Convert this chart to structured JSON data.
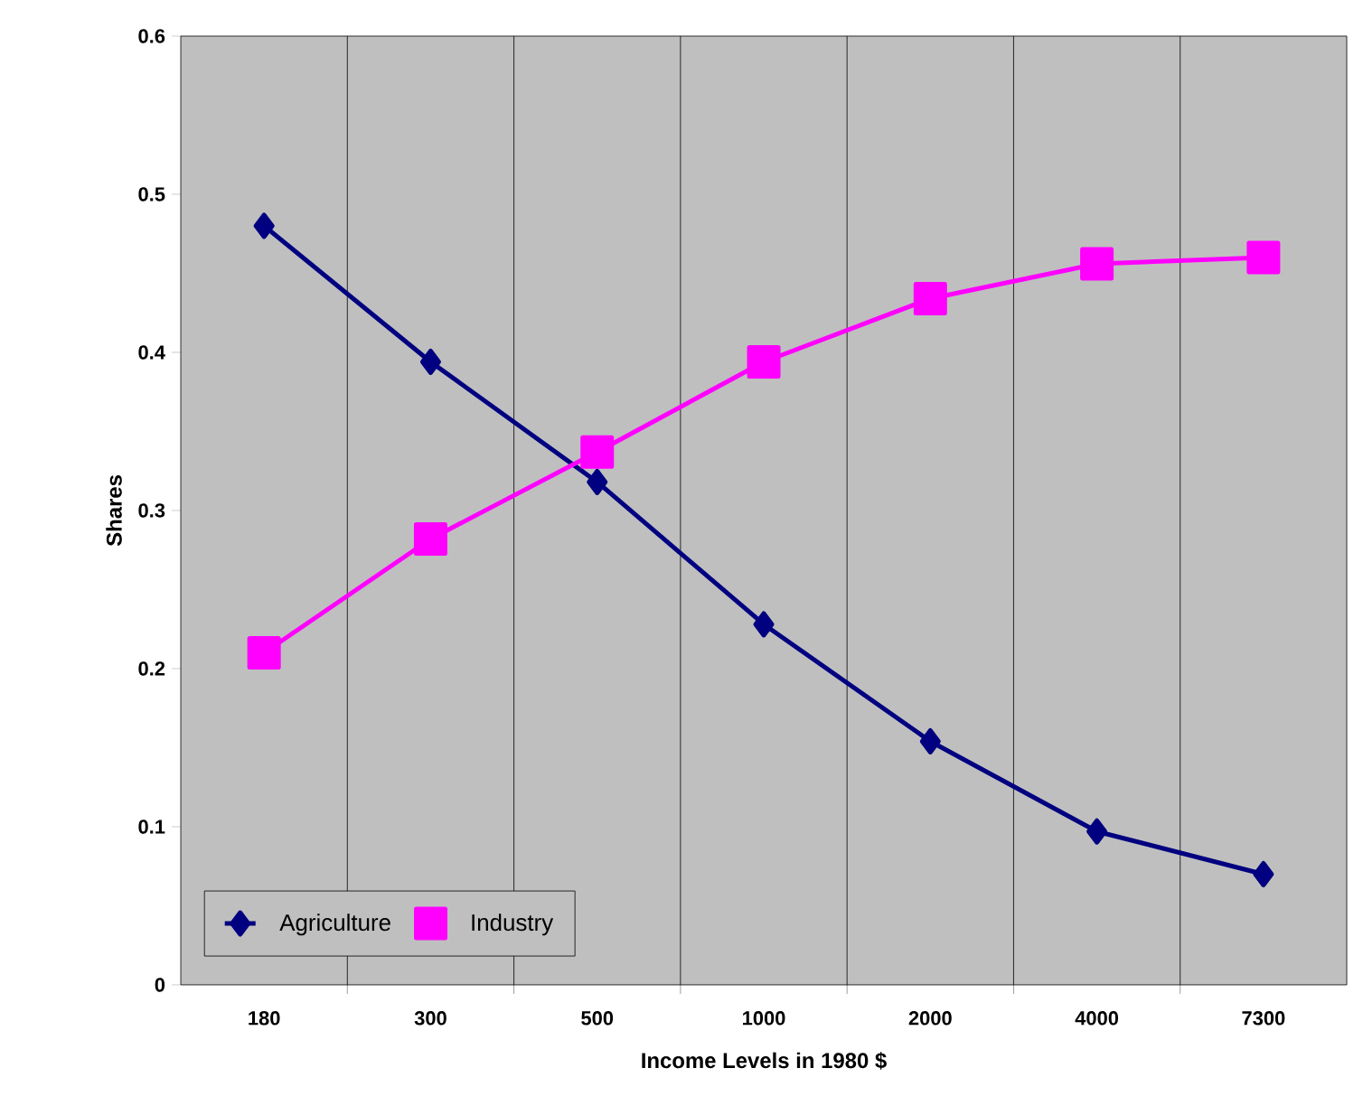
{
  "chart_data": {
    "type": "line",
    "xlabel": "Income Levels in 1980 $",
    "ylabel": "Shares",
    "categories": [
      "180",
      "300",
      "500",
      "1000",
      "2000",
      "4000",
      "7300"
    ],
    "series": [
      {
        "name": "Agriculture",
        "color": "#000080",
        "marker": "diamond",
        "values": [
          0.48,
          0.394,
          0.318,
          0.228,
          0.154,
          0.097,
          0.07
        ]
      },
      {
        "name": "Industry",
        "color": "#ff00ff",
        "marker": "square",
        "values": [
          0.21,
          0.282,
          0.337,
          0.394,
          0.434,
          0.456,
          0.46
        ]
      }
    ],
    "ylim": [
      0,
      0.6
    ],
    "yticks": [
      0,
      0.1,
      0.2,
      0.3,
      0.4,
      0.5,
      0.6
    ],
    "grid": "x",
    "legend": "bottom left",
    "line_style": "solid"
  }
}
